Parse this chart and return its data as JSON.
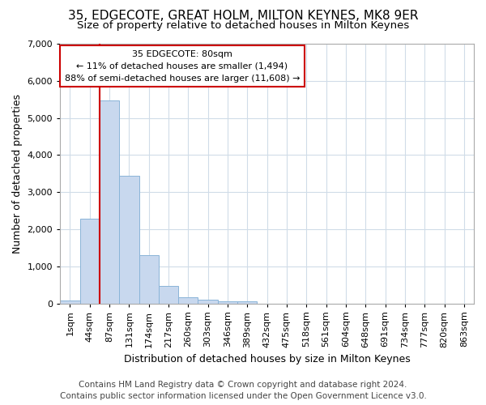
{
  "title": "35, EDGECOTE, GREAT HOLM, MILTON KEYNES, MK8 9ER",
  "subtitle": "Size of property relative to detached houses in Milton Keynes",
  "xlabel": "Distribution of detached houses by size in Milton Keynes",
  "ylabel": "Number of detached properties",
  "footer_line1": "Contains HM Land Registry data © Crown copyright and database right 2024.",
  "footer_line2": "Contains public sector information licensed under the Open Government Licence v3.0.",
  "categories": [
    "1sqm",
    "44sqm",
    "87sqm",
    "131sqm",
    "174sqm",
    "217sqm",
    "260sqm",
    "303sqm",
    "346sqm",
    "389sqm",
    "432sqm",
    "475sqm",
    "518sqm",
    "561sqm",
    "604sqm",
    "648sqm",
    "691sqm",
    "734sqm",
    "777sqm",
    "820sqm",
    "863sqm"
  ],
  "values": [
    80,
    2280,
    5480,
    3430,
    1310,
    460,
    160,
    95,
    60,
    50,
    0,
    0,
    0,
    0,
    0,
    0,
    0,
    0,
    0,
    0,
    0
  ],
  "bar_color": "#c8d8ee",
  "bar_edge_color": "#8ab4d8",
  "annotation_text_line1": "35 EDGECOTE: 80sqm",
  "annotation_text_line2": "← 11% of detached houses are smaller (1,494)",
  "annotation_text_line3": "88% of semi-detached houses are larger (11,608) →",
  "annotation_box_facecolor": "#ffffff",
  "annotation_box_edgecolor": "#cc0000",
  "vline_color": "#cc0000",
  "vline_x": 1.5,
  "ylim": [
    0,
    7000
  ],
  "background_color": "#ffffff",
  "grid_color": "#d0dce8",
  "title_fontsize": 11,
  "subtitle_fontsize": 9.5,
  "axis_label_fontsize": 9,
  "tick_fontsize": 8,
  "footer_fontsize": 7.5
}
